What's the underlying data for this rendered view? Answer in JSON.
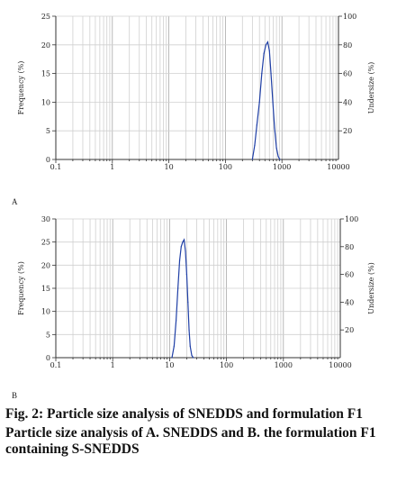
{
  "figure": {
    "caption_title": "Fig. 2: Particle size analysis of SNEDDS and formulation F1",
    "caption_desc": "Particle size analysis of A. SNEDDS and B. the formulation F1 containing S-SNEDDS"
  },
  "chart_data": [
    {
      "type": "line",
      "panel_label": "A",
      "xscale": "log",
      "xlim": [
        0.1,
        10000
      ],
      "x_tick_labels": [
        "0.1",
        "1",
        "10",
        "100",
        "1000",
        "10000"
      ],
      "ylabel": "Frequency (%)",
      "ylim": [
        0,
        25
      ],
      "y_ticks": [
        0,
        5,
        10,
        15,
        20,
        25
      ],
      "y2label": "Undersize (%)",
      "y2lim": [
        0,
        100
      ],
      "y2_ticks": [
        20,
        40,
        60,
        80,
        100
      ],
      "grid": true,
      "line_color": "#1f3fa6",
      "series": [
        {
          "x": [
            300,
            330,
            360,
            400,
            440,
            480,
            520,
            560,
            600,
            640,
            690,
            740,
            800,
            860,
            920
          ],
          "y": [
            0,
            2.5,
            6,
            10,
            15,
            18.5,
            20,
            20.5,
            19,
            15,
            10,
            5.5,
            2,
            0.5,
            0
          ]
        }
      ]
    },
    {
      "type": "line",
      "panel_label": "B",
      "xscale": "log",
      "xlim": [
        0.1,
        10000
      ],
      "x_tick_labels": [
        "0.1",
        "1",
        "10",
        "100",
        "1000",
        "10000"
      ],
      "ylabel": "Frequency (%)",
      "ylim": [
        0,
        30
      ],
      "y_ticks": [
        0,
        5,
        10,
        15,
        20,
        25,
        30
      ],
      "y2label": "Undersize (%)",
      "y2lim": [
        0,
        100
      ],
      "y2_ticks": [
        20,
        40,
        60,
        80,
        100
      ],
      "grid": true,
      "line_color": "#1f3fa6",
      "series": [
        {
          "x": [
            11,
            12,
            13,
            14,
            15,
            16,
            17,
            18,
            19,
            20,
            21,
            22,
            23,
            24.5,
            26
          ],
          "y": [
            0,
            2.5,
            8,
            15,
            21,
            24,
            25,
            25.5,
            23,
            18,
            12,
            6,
            2.5,
            0.5,
            0
          ]
        }
      ]
    }
  ]
}
